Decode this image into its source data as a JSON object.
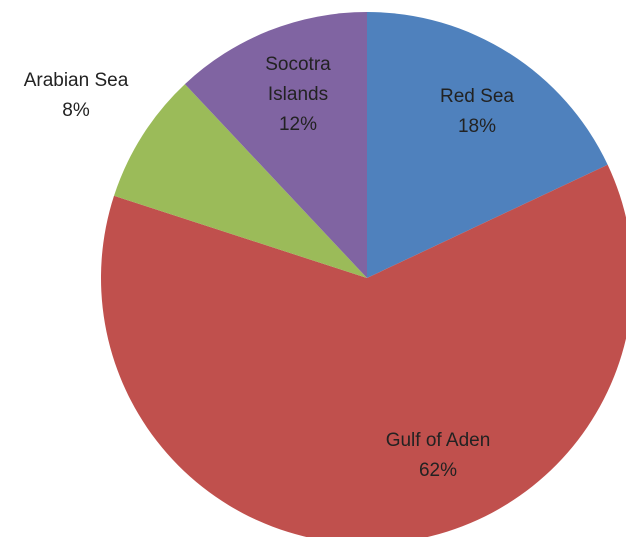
{
  "chart_data": {
    "type": "pie",
    "title": "",
    "start_angle_deg": 0,
    "direction": "clockwise",
    "slices": [
      {
        "label": "Red Sea",
        "value": 18,
        "value_label": "18%",
        "color": "#4F81BD"
      },
      {
        "label": "Gulf of Aden",
        "value": 62,
        "value_label": "62%",
        "color": "#C0504D"
      },
      {
        "label": "Arabian Sea",
        "value": 8,
        "value_label": "8%",
        "color": "#9BBB59"
      },
      {
        "label": "Socotra Islands",
        "value": 12,
        "value_label": "12%",
        "color": "#8064A2"
      }
    ],
    "legend": "none",
    "labels": "category name and percentage on each slice"
  }
}
